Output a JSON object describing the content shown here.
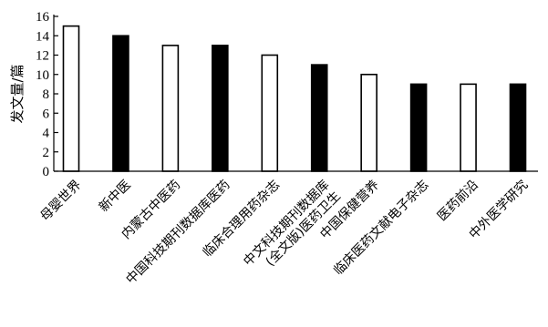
{
  "chart_data": {
    "type": "bar",
    "ylabel": "发文量/篇",
    "xlabel": "",
    "title": "",
    "ylim": [
      0,
      16
    ],
    "yticks": [
      0,
      2,
      4,
      6,
      8,
      10,
      12,
      14,
      16
    ],
    "grid": false,
    "legend": "none",
    "categories": [
      [
        "母婴世界"
      ],
      [
        "新中医"
      ],
      [
        "内蒙古中医药"
      ],
      [
        "中国科技期刊数据库医药"
      ],
      [
        "临床合理用药杂志"
      ],
      [
        "中文科技期刊数据库",
        "(全文版)医药卫生"
      ],
      [
        "中国保健营养"
      ],
      [
        "临床医药文献电子杂志"
      ],
      [
        "医药前沿"
      ],
      [
        "中外医学研究"
      ]
    ],
    "values": [
      15,
      14,
      13,
      13,
      12,
      11,
      10,
      9,
      9,
      9
    ],
    "fills": [
      "white",
      "black",
      "white",
      "black",
      "white",
      "black",
      "white",
      "black",
      "white",
      "black"
    ],
    "colors": {
      "white": "#ffffff",
      "black": "#000000",
      "axis": "#000000"
    }
  }
}
